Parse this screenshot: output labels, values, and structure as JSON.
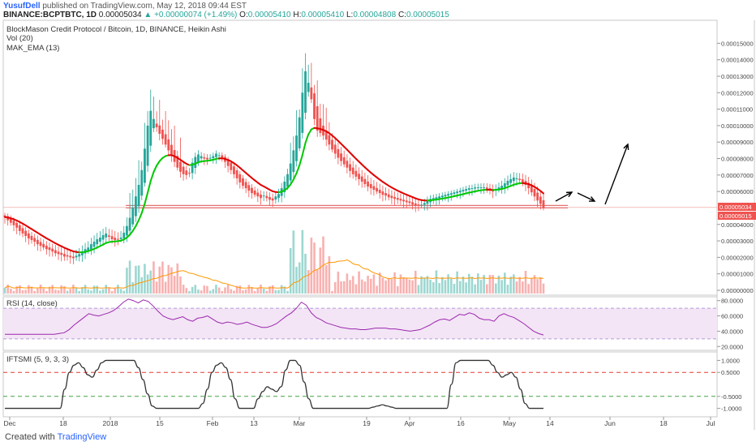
{
  "header": {
    "user": "YusufDell",
    "published": "published on TradingView.com, May 12, 2018 09:44 EST",
    "symbol": "BINANCE:BCPTBTC, 1D",
    "price": "0.00005034",
    "change": "▲ +0.00000074 (+1.49%)",
    "o_label": "O:",
    "o_val": "0.00005410",
    "h_label": "H:",
    "h_val": "0.00005410",
    "l_label": "L:",
    "l_val": "0.00004808",
    "c_label": "C:",
    "c_val": "0.00005015"
  },
  "footer": {
    "created": "Created with",
    "brand": "TradingView"
  },
  "colors": {
    "bull": "#26a69a",
    "bear": "#ef5350",
    "ema_up": "#00c800",
    "ema_down": "#e00000",
    "rsi": "#9c27b0",
    "rsi_band": "#f3e5f5"
  },
  "chart_data": [
    {
      "type": "candlestick",
      "title": "BlockMason Credit Protocol / Bitcoin, 1D, BINANCE, Heikin Ashi",
      "indicators": [
        "Vol (20)",
        "MAK_EMA (13)"
      ],
      "x_tick_labels": [
        "Dec",
        "18",
        "2018",
        "15",
        "Feb",
        "13",
        "Mar",
        "19",
        "Apr",
        "16",
        "May",
        "14",
        "Jun",
        "18",
        "Jul"
      ],
      "y_tick_labels": [
        "0.00015000",
        "0.00014000",
        "0.00013000",
        "0.00012000",
        "0.00011000",
        "0.00010000",
        "0.00009000",
        "0.00008000",
        "0.00007000",
        "0.00006000",
        "0.00004000",
        "0.00003000",
        "0.00002000",
        "0.00001000",
        "0.00000000"
      ],
      "ylim": [
        0,
        0.000162
      ],
      "last_price_labels": [
        "0.00005034",
        "0.00005015"
      ],
      "support_level": 5.15e-05,
      "close_values": [
        4.45e-05,
        4.25e-05,
        4.1e-05,
        3.95e-05,
        3.8e-05,
        3.6e-05,
        3.45e-05,
        3.3e-05,
        3.15e-05,
        3.05e-05,
        2.95e-05,
        2.8e-05,
        2.7e-05,
        2.6e-05,
        2.5e-05,
        2.45e-05,
        2.35e-05,
        2.25e-05,
        2.2e-05,
        2.15e-05,
        2.05e-05,
        2.05e-05,
        2e-05,
        1.95e-05,
        2.1e-05,
        2.2e-05,
        2.35e-05,
        2.5e-05,
        2.6e-05,
        2.8e-05,
        2.95e-05,
        3.1e-05,
        3.2e-05,
        3.35e-05,
        3.45e-05,
        3.25e-05,
        3.1e-05,
        3.05e-05,
        3.1e-05,
        3.2e-05,
        3.5e-05,
        3.9e-05,
        4.4e-05,
        5e-05,
        5.7e-05,
        6.4e-05,
        7.3e-05,
        8.6e-05,
        0.0001,
        0.000109,
        0.000104,
        9.9e-05,
        9.5e-05,
        9.2e-05,
        8.85e-05,
        8.5e-05,
        8.2e-05,
        7.8e-05,
        7.45e-05,
        7.2e-05,
        7.05e-05,
        7e-05,
        7.1e-05,
        7.75e-05,
        8.1e-05,
        8.25e-05,
        8.15e-05,
        8e-05,
        7.95e-05,
        8.05e-05,
        8.15e-05,
        8.3e-05,
        8.2e-05,
        8e-05,
        7.8e-05,
        7.55e-05,
        7.3e-05,
        7.05e-05,
        6.8e-05,
        6.55e-05,
        6.35e-05,
        6.2e-05,
        6.05e-05,
        5.9e-05,
        5.8e-05,
        5.7e-05,
        5.6e-05,
        5.75e-05,
        5.6e-05,
        5.5e-05,
        5.45e-05,
        5.7e-05,
        5.85e-05,
        6.2e-05,
        6.6e-05,
        7.05e-05,
        7.7e-05,
        8.5e-05,
        9.4e-05,
        0.000105,
        0.00012,
        0.000133,
        0.000126,
        0.000116,
        0.000104,
        9.7e-05,
        9.55e-05,
        9.4e-05,
        9.15e-05,
        8.85e-05,
        8.55e-05,
        8.3e-05,
        8.05e-05,
        7.85e-05,
        7.65e-05,
        7.45e-05,
        7.25e-05,
        7.05e-05,
        6.9e-05,
        6.75e-05,
        6.6e-05,
        6.45e-05,
        6.3e-05,
        6.2e-05,
        6.1e-05,
        6e-05,
        5.9e-05,
        5.8e-05,
        5.75e-05,
        5.65e-05,
        5.6e-05,
        5.55e-05,
        5.5e-05,
        5.45e-05,
        5.4e-05,
        5.35e-05,
        5.3e-05,
        5.2e-05,
        5.15e-05,
        5.15e-05,
        5.2e-05,
        5.3e-05,
        5.45e-05,
        5.55e-05,
        5.6e-05,
        5.65e-05,
        5.7e-05,
        5.75e-05,
        5.8e-05,
        5.85e-05,
        5.9e-05,
        5.95e-05,
        6e-05,
        6.05e-05,
        6.1e-05,
        6.15e-05,
        6.2e-05,
        6.2e-05,
        6.25e-05,
        6.25e-05,
        6.25e-05,
        6.25e-05,
        6.15e-05,
        6.1e-05,
        6e-05,
        6.15e-05,
        6.25e-05,
        6.35e-05,
        6.5e-05,
        6.65e-05,
        6.75e-05,
        6.85e-05,
        6.8e-05,
        6.7e-05,
        6.55e-05,
        6.4e-05,
        6.2e-05,
        5.95e-05,
        5.7e-05,
        5.45e-05,
        5.25e-05,
        5.015e-05
      ]
    },
    {
      "type": "bar",
      "title": "Vol (20)",
      "note": "volume histogram with 20-period average"
    },
    {
      "type": "line",
      "title": "RSI (14, close)",
      "y_tick_labels": [
        "80.0000",
        "60.0000",
        "40.0000",
        "20.0000"
      ],
      "ylim": [
        15,
        85
      ],
      "bands": [
        70,
        30
      ],
      "values": [
        36,
        36,
        36,
        36,
        36,
        36,
        36,
        36,
        36,
        36,
        36,
        37,
        38,
        42,
        48,
        53,
        58,
        63,
        61,
        60,
        62,
        64,
        67,
        72,
        78,
        82,
        80,
        77,
        81,
        79,
        73,
        66,
        60,
        57,
        55,
        57,
        59,
        55,
        53,
        57,
        58,
        60,
        56,
        52,
        50,
        52,
        51,
        49,
        50,
        52,
        49,
        47,
        45,
        45,
        47,
        50,
        55,
        60,
        64,
        70,
        78,
        74,
        64,
        58,
        55,
        51,
        49,
        47,
        45,
        44,
        43,
        43,
        42,
        42,
        43,
        44,
        44,
        44,
        43,
        43,
        42,
        41,
        40,
        41,
        42,
        45,
        48,
        52,
        55,
        56,
        54,
        58,
        62,
        61,
        64,
        62,
        57,
        55,
        55,
        53,
        60,
        63,
        60,
        58,
        54,
        50,
        45,
        40,
        37,
        35
      ]
    },
    {
      "type": "line",
      "title": "IFTSMI (5, 9, 3, 3)",
      "y_tick_labels": [
        "1.0000",
        "0.5000",
        "-0.5000",
        "-1.0000"
      ],
      "ylim": [
        -1.15,
        1.15
      ],
      "reference_lines": [
        0.5,
        -0.5
      ],
      "values": [
        -1,
        -1,
        -1,
        -1,
        -1,
        -1,
        -1,
        -1,
        -1,
        -1,
        -1,
        -1,
        -1,
        -0.2,
        0.5,
        0.8,
        0.9,
        0.7,
        0.4,
        0.3,
        0.6,
        0.9,
        1,
        1,
        1,
        1,
        1,
        1,
        1,
        0.7,
        0.2,
        -0.4,
        -0.9,
        -1,
        -1,
        -1,
        -1,
        -1,
        -1,
        -1,
        -1,
        -1,
        -1,
        -0.8,
        -0.2,
        0.5,
        0.8,
        0.9,
        0.7,
        0.2,
        -0.6,
        -1,
        -1,
        -1,
        -1,
        -0.6,
        -0.3,
        -0.1,
        -0.2,
        -0.3,
        -0.1,
        0.6,
        1,
        1,
        0.8,
        0.1,
        -0.6,
        -1,
        -1,
        -1,
        -1,
        -1,
        -1,
        -1,
        -1,
        -1,
        -1,
        -1,
        -1,
        -1,
        -0.95,
        -0.9,
        -0.85,
        -0.9,
        -0.95,
        -1,
        -1,
        -1,
        -1,
        -1,
        -1,
        -1,
        -1,
        -1,
        -1,
        -1,
        -1,
        0,
        0.9,
        1,
        1,
        1,
        1,
        1,
        1,
        1,
        0.8,
        0.5,
        0.3,
        0.4,
        0.5,
        0.3,
        -0.2,
        -0.8,
        -1,
        -1,
        -1,
        -1
      ]
    }
  ]
}
